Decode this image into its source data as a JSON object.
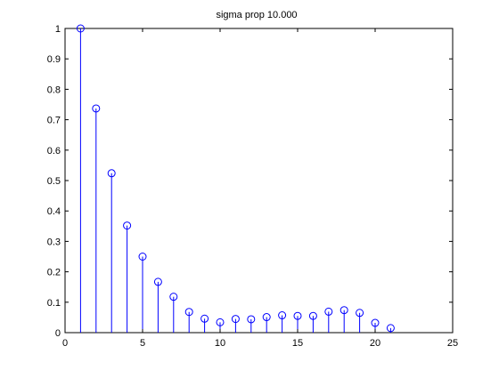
{
  "chart_data": {
    "type": "stem",
    "title": "sigma prop 10.000",
    "xlabel": "",
    "ylabel": "",
    "xlim": [
      0,
      25
    ],
    "ylim": [
      0,
      1
    ],
    "xticks": [
      0,
      5,
      10,
      15,
      20,
      25
    ],
    "yticks": [
      0,
      0.1,
      0.2,
      0.3,
      0.4,
      0.5,
      0.6,
      0.7,
      0.8,
      0.9,
      1
    ],
    "xtick_labels": [
      "0",
      "5",
      "10",
      "15",
      "20",
      "25"
    ],
    "ytick_labels": [
      "0",
      "0.1",
      "0.2",
      "0.3",
      "0.4",
      "0.5",
      "0.6",
      "0.7",
      "0.8",
      "0.9",
      "1"
    ],
    "grid": false,
    "legend": "none",
    "series": [
      {
        "x": [
          1,
          2,
          3,
          4,
          5,
          6,
          7,
          8,
          9,
          10,
          11,
          12,
          13,
          14,
          15,
          16,
          17,
          18,
          19,
          20,
          21
        ],
        "values": [
          1.0,
          0.737,
          0.524,
          0.352,
          0.25,
          0.167,
          0.118,
          0.068,
          0.046,
          0.034,
          0.045,
          0.044,
          0.051,
          0.057,
          0.055,
          0.055,
          0.069,
          0.074,
          0.065,
          0.032,
          0.015
        ],
        "color": "#0000ff"
      }
    ]
  }
}
